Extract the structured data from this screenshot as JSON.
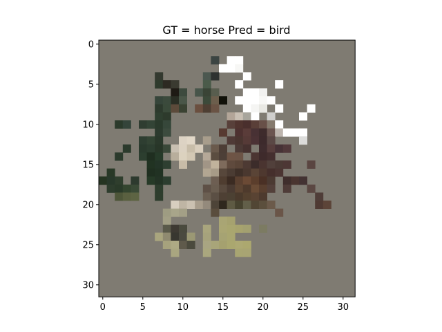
{
  "chart_data": {
    "type": "heatmap",
    "title": "GT = horse Pred = bird",
    "xlabel": "",
    "ylabel": "",
    "grid": false,
    "width": 32,
    "height": 32,
    "xlim": [
      -0.5,
      31.5
    ],
    "ylim": [
      31.5,
      -0.5
    ],
    "x_ticks": [
      0,
      5,
      10,
      15,
      20,
      25,
      30
    ],
    "y_ticks": [
      0,
      5,
      10,
      15,
      20,
      25,
      30
    ],
    "background_color": "#7f7b72",
    "pixels": [
      {
        "r": 2,
        "cells": [
          [
            14,
            "#3b4442"
          ],
          [
            16,
            "#ffffff"
          ],
          [
            17,
            "#ffffff"
          ]
        ]
      },
      {
        "r": 3,
        "cells": [
          [
            15,
            "#ffffff"
          ],
          [
            16,
            "#ffffff"
          ],
          [
            17,
            "#f7f7f5"
          ]
        ]
      },
      {
        "r": 4,
        "cells": [
          [
            7,
            "#33392f"
          ],
          [
            13,
            "#4c5850"
          ],
          [
            14,
            "#2e3230"
          ],
          [
            18,
            "#ffffff"
          ]
        ]
      },
      {
        "r": 5,
        "cells": [
          [
            7,
            "#2e3a2c"
          ],
          [
            8,
            "#2d2a22"
          ],
          [
            9,
            "#3a3a30"
          ],
          [
            13,
            "#4b5b4a"
          ],
          [
            17,
            "#ffffff"
          ],
          [
            22,
            "#ffffff"
          ]
        ]
      },
      {
        "r": 6,
        "cells": [
          [
            9,
            "#1e1a14"
          ],
          [
            10,
            "#3d4a3e"
          ],
          [
            12,
            "#47554a"
          ],
          [
            13,
            "#3a4436"
          ],
          [
            14,
            "#585d4e"
          ],
          [
            18,
            "#ffffff"
          ],
          [
            19,
            "#ffffff"
          ],
          [
            20,
            "#f2f2f0"
          ]
        ]
      },
      {
        "r": 7,
        "cells": [
          [
            7,
            "#36453a"
          ],
          [
            8,
            "#3b4a3c"
          ],
          [
            9,
            "#2a2e24"
          ],
          [
            10,
            "#4a5648"
          ],
          [
            13,
            "#3c4a3a"
          ],
          [
            14,
            "#6c5e4c"
          ],
          [
            15,
            "#111109"
          ],
          [
            17,
            "#ffffff"
          ],
          [
            18,
            "#ffffff"
          ],
          [
            19,
            "#ffffff"
          ],
          [
            20,
            "#f8f8f6"
          ],
          [
            21,
            "#ffffff"
          ]
        ]
      },
      {
        "r": 8,
        "cells": [
          [
            7,
            "#2d3a2d"
          ],
          [
            8,
            "#3a4a3a"
          ],
          [
            9,
            "#5c4a3a"
          ],
          [
            10,
            "#3a4232"
          ],
          [
            12,
            "#6b4f3f"
          ],
          [
            13,
            "#4e3f33"
          ],
          [
            14,
            "#6a5344"
          ],
          [
            18,
            "#ffffff"
          ],
          [
            19,
            "#f5f5f3"
          ],
          [
            20,
            "#e9e9e4"
          ],
          [
            22,
            "#ffffff"
          ],
          [
            26,
            "#ffffff"
          ]
        ]
      },
      {
        "r": 9,
        "cells": [
          [
            7,
            "#2f3f30"
          ],
          [
            8,
            "#2d3a2c"
          ],
          [
            16,
            "#b3a598"
          ],
          [
            17,
            "#c9bfb3"
          ],
          [
            18,
            "#a8a59c"
          ],
          [
            19,
            "#ffffff"
          ],
          [
            21,
            "#cfcfcd"
          ],
          [
            25,
            "#ffffff"
          ]
        ]
      },
      {
        "r": 10,
        "cells": [
          [
            2,
            "#2b3a2b"
          ],
          [
            3,
            "#34443a"
          ],
          [
            5,
            "#2f3d31"
          ],
          [
            6,
            "#334436"
          ],
          [
            7,
            "#2a3a2c"
          ],
          [
            8,
            "#36473a"
          ],
          [
            16,
            "#58403a"
          ],
          [
            17,
            "#50342f"
          ],
          [
            18,
            "#4a2f2d"
          ],
          [
            19,
            "#5a3f38"
          ],
          [
            20,
            "#685048"
          ],
          [
            21,
            "#857a6e"
          ],
          [
            22,
            "#ffffff"
          ]
        ]
      },
      {
        "r": 11,
        "cells": [
          [
            7,
            "#2c3a2e"
          ],
          [
            8,
            "#3c4b3e"
          ],
          [
            15,
            "#573a31"
          ],
          [
            17,
            "#4d3130"
          ],
          [
            18,
            "#5a3c39"
          ],
          [
            19,
            "#483134"
          ],
          [
            20,
            "#3e2b2c"
          ],
          [
            21,
            "#6b5550"
          ],
          [
            22,
            "#bdb5ae"
          ],
          [
            23,
            "#ffffff"
          ],
          [
            24,
            "#ffffff"
          ],
          [
            25,
            "#ffffff"
          ]
        ]
      },
      {
        "r": 12,
        "cells": [
          [
            5,
            "#2e3e31"
          ],
          [
            6,
            "#334434"
          ],
          [
            7,
            "#2a382b"
          ],
          [
            10,
            "#ddd3c4"
          ],
          [
            11,
            "#e2d8c8"
          ],
          [
            13,
            "#a89d8c"
          ],
          [
            16,
            "#4f3a36"
          ],
          [
            17,
            "#4a3530"
          ],
          [
            18,
            "#563a37"
          ],
          [
            19,
            "#4b3235"
          ],
          [
            20,
            "#3d2a2c"
          ],
          [
            21,
            "#5a4845"
          ],
          [
            25,
            "#dcdcda"
          ]
        ]
      },
      {
        "r": 13,
        "cells": [
          [
            3,
            "#2b3a2c"
          ],
          [
            5,
            "#2a3a2d"
          ],
          [
            6,
            "#2d3e30"
          ],
          [
            7,
            "#283628"
          ],
          [
            8,
            "#3a4839"
          ],
          [
            9,
            "#c9c0b2"
          ],
          [
            10,
            "#dcd2c2"
          ],
          [
            11,
            "#c8bda9"
          ],
          [
            12,
            "#d9cebd"
          ],
          [
            14,
            "#6a5a4c"
          ],
          [
            15,
            "#4d3e36"
          ],
          [
            17,
            "#4c3a36"
          ],
          [
            18,
            "#46312f"
          ],
          [
            20,
            "#3f2c2e"
          ],
          [
            21,
            "#573e3d"
          ],
          [
            22,
            "#463236"
          ],
          [
            23,
            "#51393b"
          ]
        ]
      },
      {
        "r": 14,
        "cells": [
          [
            2,
            "#2b3a2c"
          ],
          [
            5,
            "#2c3e2f"
          ],
          [
            6,
            "#1f2e20"
          ],
          [
            7,
            "#263a29"
          ],
          [
            9,
            "#b8ae9c"
          ],
          [
            10,
            "#dcd2bf"
          ],
          [
            11,
            "#d3c8b4"
          ],
          [
            13,
            "#b5a898"
          ],
          [
            14,
            "#5b4d40"
          ],
          [
            15,
            "#4d3f37"
          ],
          [
            16,
            "#6e5445"
          ],
          [
            17,
            "#6c5446"
          ],
          [
            19,
            "#4b3532"
          ],
          [
            20,
            "#3e2a2b"
          ],
          [
            21,
            "#442f2f"
          ]
        ]
      },
      {
        "r": 15,
        "cells": [
          [
            6,
            "#213322"
          ],
          [
            7,
            "#233427"
          ],
          [
            8,
            "#2e3f31"
          ],
          [
            10,
            "#c8bca8"
          ],
          [
            13,
            "#a19586"
          ],
          [
            14,
            "#c1b39c"
          ],
          [
            15,
            "#7e6b5c"
          ],
          [
            16,
            "#5f4a3d"
          ],
          [
            17,
            "#5a4538"
          ],
          [
            18,
            "#4d3a33"
          ],
          [
            19,
            "#3c2c2a"
          ],
          [
            20,
            "#4a3430"
          ],
          [
            21,
            "#51403b"
          ],
          [
            22,
            "#4b3a35"
          ],
          [
            23,
            "#4d3735"
          ],
          [
            26,
            "#5a4541"
          ]
        ]
      },
      {
        "r": 16,
        "cells": [
          [
            1,
            "#283826"
          ],
          [
            6,
            "#1f2f20"
          ],
          [
            7,
            "#213223"
          ],
          [
            13,
            "#b2a692"
          ],
          [
            14,
            "#a79b87"
          ],
          [
            15,
            "#57473b"
          ],
          [
            16,
            "#4b3c33"
          ],
          [
            17,
            "#3f3028"
          ],
          [
            18,
            "#4a382f"
          ],
          [
            19,
            "#5a4436"
          ],
          [
            20,
            "#4e382f"
          ],
          [
            21,
            "#452f2c"
          ],
          [
            22,
            "#4b3532"
          ]
        ]
      },
      {
        "r": 17,
        "cells": [
          [
            0,
            "#253421"
          ],
          [
            1,
            "#28382a"
          ],
          [
            2,
            "#2f3e2d"
          ],
          [
            4,
            "#2d3a2e"
          ],
          [
            6,
            "#263a27"
          ],
          [
            7,
            "#233325"
          ],
          [
            8,
            "#2c3d2f"
          ],
          [
            14,
            "#6d5e52"
          ],
          [
            15,
            "#4f3d30"
          ],
          [
            16,
            "#3b2b22"
          ],
          [
            17,
            "#5a4030"
          ],
          [
            18,
            "#6b4a35"
          ],
          [
            19,
            "#5b3e2c"
          ],
          [
            20,
            "#4a3025"
          ],
          [
            21,
            "#4b3a32"
          ],
          [
            23,
            "#3f2e2c"
          ],
          [
            24,
            "#4a3530"
          ],
          [
            25,
            "#433232"
          ]
        ]
      },
      {
        "r": 18,
        "cells": [
          [
            1,
            "#2e3d2d"
          ],
          [
            2,
            "#2a3a29"
          ],
          [
            3,
            "#34452f"
          ],
          [
            4,
            "#3a4a36"
          ],
          [
            7,
            "#2d3d2d"
          ],
          [
            13,
            "#5e5046"
          ],
          [
            14,
            "#6a5d50"
          ],
          [
            15,
            "#594a3e"
          ],
          [
            16,
            "#4a3b32"
          ],
          [
            17,
            "#5c4533"
          ],
          [
            18,
            "#4e3a2c"
          ],
          [
            19,
            "#6a4c36"
          ],
          [
            20,
            "#593f2f"
          ],
          [
            21,
            "#53403a"
          ],
          [
            23,
            "#4f3c38"
          ],
          [
            26,
            "#5b4742"
          ]
        ]
      },
      {
        "r": 19,
        "cells": [
          [
            2,
            "#4e5639"
          ],
          [
            3,
            "#5a6040"
          ],
          [
            4,
            "#5d6443"
          ],
          [
            7,
            "#2e3d2d"
          ],
          [
            13,
            "#6b5f52"
          ],
          [
            14,
            "#5b4f44"
          ],
          [
            15,
            "#4e4034"
          ],
          [
            16,
            "#4c4133"
          ],
          [
            17,
            "#4a3a2c"
          ],
          [
            18,
            "#54412f"
          ],
          [
            19,
            "#594333"
          ],
          [
            20,
            "#4d3a2e"
          ],
          [
            27,
            "#4f3d38"
          ]
        ]
      },
      {
        "r": 20,
        "cells": [
          [
            9,
            "#d7cebf"
          ],
          [
            10,
            "#bfb5a4"
          ],
          [
            11,
            "#cbc1b1"
          ],
          [
            12,
            "#a89d8c"
          ],
          [
            13,
            "#948a7c"
          ],
          [
            14,
            "#4d4438"
          ],
          [
            15,
            "#2f281e"
          ],
          [
            16,
            "#5e5a43"
          ],
          [
            17,
            "#47432f"
          ],
          [
            18,
            "#625f49"
          ],
          [
            19,
            "#514634"
          ],
          [
            20,
            "#5b4f3d"
          ],
          [
            21,
            "#6b5a4a"
          ],
          [
            27,
            "#4f3a33"
          ],
          [
            28,
            "#5c4438"
          ]
        ]
      },
      {
        "r": 21,
        "cells": [
          [
            8,
            "#9e9c82"
          ],
          [
            9,
            "#a8a58a"
          ],
          [
            10,
            "#a39f86"
          ],
          [
            14,
            "#5a4d3d"
          ],
          [
            22,
            "#6a5548"
          ]
        ]
      },
      {
        "r": 22,
        "cells": [
          [
            8,
            "#a29f85"
          ],
          [
            15,
            "#a9a574"
          ],
          [
            16,
            "#a6a26f"
          ]
        ]
      },
      {
        "r": 23,
        "cells": [
          [
            8,
            "#5a5a4a"
          ],
          [
            9,
            "#3e3a33"
          ],
          [
            10,
            "#4a4a3e"
          ],
          [
            13,
            "#a9a57d"
          ],
          [
            15,
            "#aaa673"
          ],
          [
            16,
            "#a9a66f"
          ],
          [
            17,
            "#a7a36e"
          ],
          [
            18,
            "#a3a070"
          ],
          [
            20,
            "#7c7b62"
          ]
        ]
      },
      {
        "r": 24,
        "cells": [
          [
            7,
            "#a9a57e"
          ],
          [
            8,
            "#8f8a70"
          ],
          [
            9,
            "#383730"
          ],
          [
            10,
            "#4b4a40"
          ],
          [
            11,
            "#9b9874"
          ],
          [
            13,
            "#a6a27c"
          ],
          [
            15,
            "#a6a373"
          ],
          [
            16,
            "#a9a670"
          ]
        ]
      },
      {
        "r": 25,
        "cells": [
          [
            8,
            "#a6a27d"
          ],
          [
            9,
            "#ada984"
          ],
          [
            10,
            "#5f5a4b"
          ],
          [
            11,
            "#4b4a3d"
          ],
          [
            13,
            "#a9a582"
          ],
          [
            14,
            "#a8a579"
          ],
          [
            15,
            "#a5a16f"
          ],
          [
            16,
            "#aaa76f"
          ],
          [
            17,
            "#ada973"
          ],
          [
            18,
            "#aca86f"
          ]
        ]
      },
      {
        "r": 26,
        "cells": [
          [
            9,
            "#a9a680"
          ],
          [
            13,
            "#aaa77e"
          ],
          [
            17,
            "#a8a572"
          ],
          [
            18,
            "#a8a473"
          ]
        ]
      }
    ]
  }
}
